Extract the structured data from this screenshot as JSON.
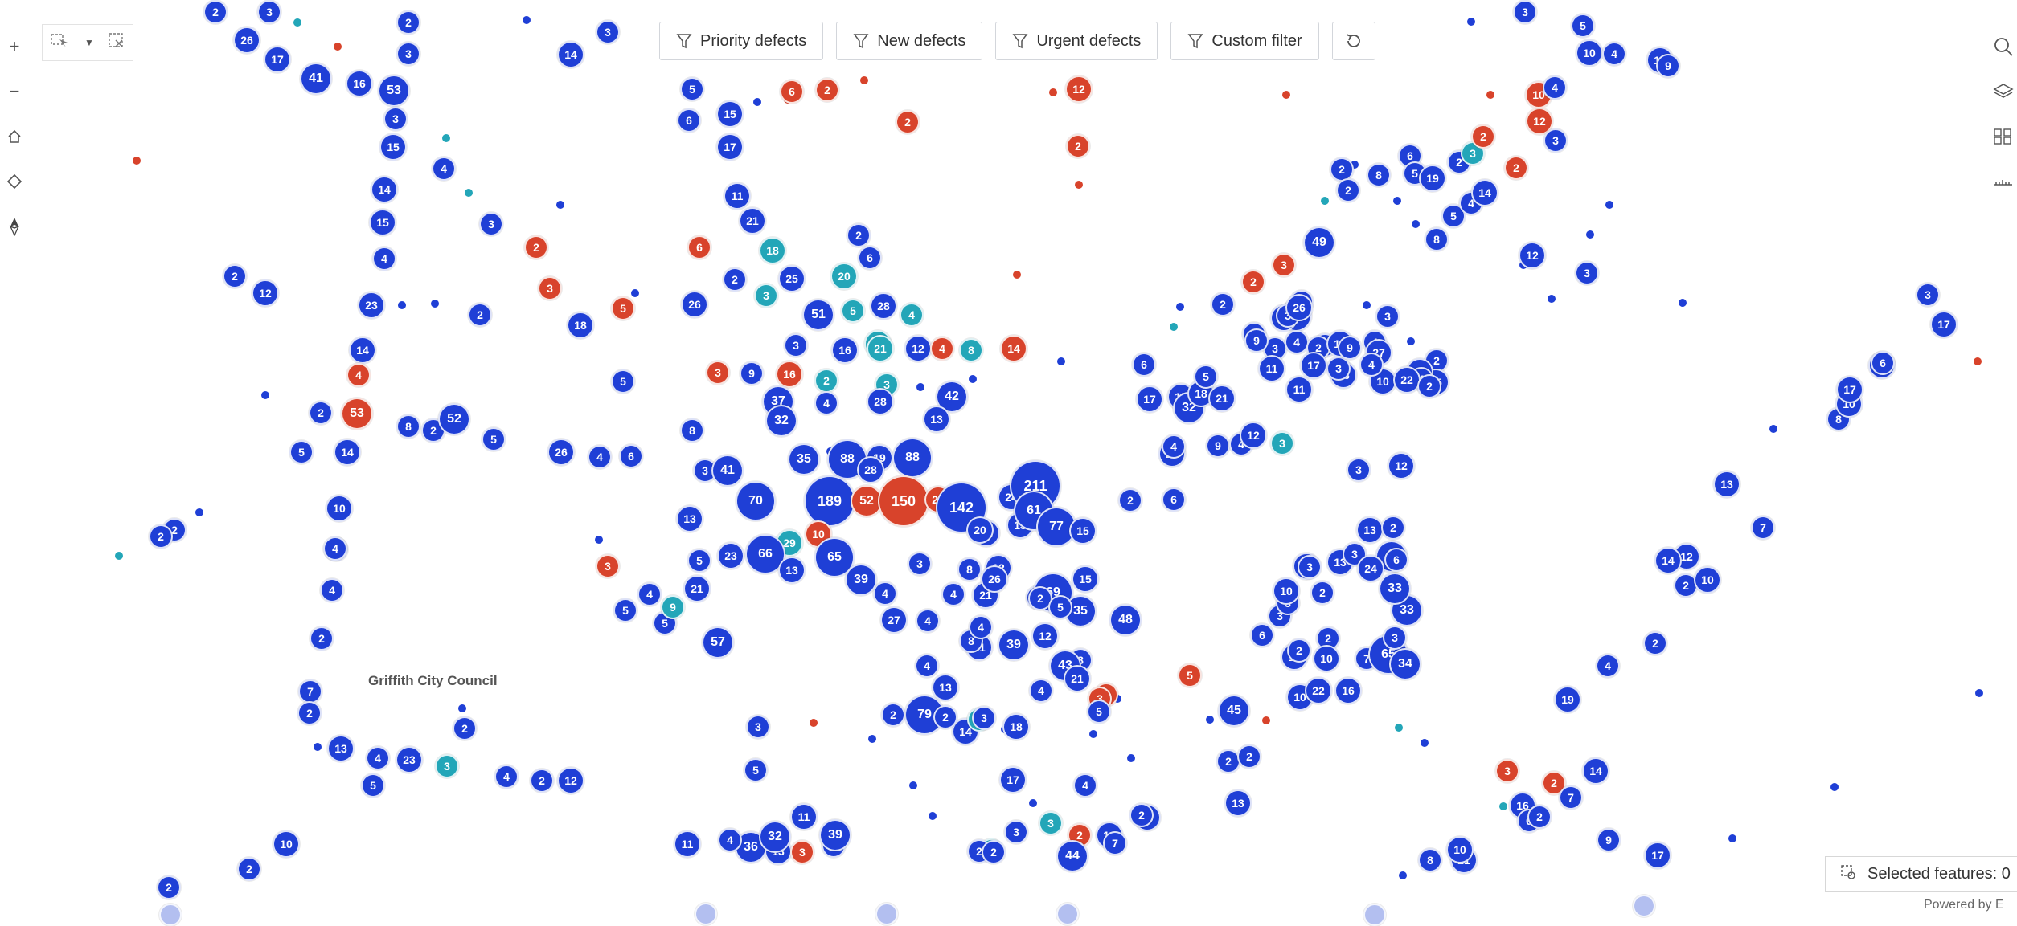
{
  "toolbar": {
    "filters": [
      {
        "label": "Priority defects"
      },
      {
        "label": "New defects"
      },
      {
        "label": "Urgent defects"
      },
      {
        "label": "Custom filter"
      }
    ]
  },
  "map": {
    "place_label": "Griffith City Council",
    "selected_features_text": "Selected features: 0",
    "powered_by_text": "Powered by E"
  },
  "colors": {
    "cluster_blue": "#1f3fd6",
    "cluster_red": "#d8432b",
    "cluster_teal": "#23a6b8",
    "faded_blue": "#b3bff0"
  },
  "icons": {
    "zoom_in": "plus-icon",
    "zoom_out": "minus-icon",
    "home": "home-icon",
    "locate": "locate-icon",
    "compass": "compass-icon",
    "select": "select-rectangle-icon",
    "clear_selection": "clear-selection-icon",
    "search": "search-icon",
    "layers": "layers-icon",
    "basemap": "basemap-gallery-icon",
    "measure": "measure-icon",
    "filter": "filter-icon",
    "refresh": "refresh-icon"
  },
  "clusters": [
    {
      "t": "2",
      "c": "b"
    },
    {
      "t": "3",
      "c": "b"
    },
    {
      "t": "2",
      "c": "b"
    },
    {
      "t": "26",
      "c": "b"
    },
    {
      "t": "17",
      "c": "b"
    },
    {
      "t": "3",
      "c": "b"
    },
    {
      "t": "14",
      "c": "b"
    },
    {
      "t": "3",
      "c": "b"
    },
    {
      "t": "41",
      "c": "b"
    },
    {
      "t": "16",
      "c": "b"
    },
    {
      "t": "53",
      "c": "b"
    },
    {
      "t": "3",
      "c": "b"
    },
    {
      "t": "15",
      "c": "b"
    },
    {
      "t": "4",
      "c": "b"
    },
    {
      "t": "14",
      "c": "b"
    },
    {
      "t": "15",
      "c": "b"
    },
    {
      "t": "3",
      "c": "b"
    },
    {
      "t": "4",
      "c": "b"
    },
    {
      "t": "2",
      "c": "b"
    },
    {
      "t": "12",
      "c": "b"
    },
    {
      "t": "23",
      "c": "b"
    },
    {
      "t": "2",
      "c": "b"
    },
    {
      "t": "18",
      "c": "b"
    },
    {
      "t": "14",
      "c": "b"
    },
    {
      "t": "4",
      "c": "r"
    },
    {
      "t": "53",
      "c": "r"
    },
    {
      "t": "2",
      "c": "b"
    },
    {
      "t": "8",
      "c": "b"
    },
    {
      "t": "2",
      "c": "b"
    },
    {
      "t": "52",
      "c": "b"
    },
    {
      "t": "5",
      "c": "b"
    },
    {
      "t": "14",
      "c": "b"
    },
    {
      "t": "5",
      "c": "b"
    },
    {
      "t": "10",
      "c": "b"
    },
    {
      "t": "2",
      "c": "b"
    },
    {
      "t": "2",
      "c": "b"
    },
    {
      "t": "4",
      "c": "b"
    },
    {
      "t": "4",
      "c": "b"
    },
    {
      "t": "2",
      "c": "b"
    },
    {
      "t": "7",
      "c": "b"
    },
    {
      "t": "2",
      "c": "b"
    },
    {
      "t": "2",
      "c": "b"
    },
    {
      "t": "13",
      "c": "b"
    },
    {
      "t": "4",
      "c": "b"
    },
    {
      "t": "23",
      "c": "b"
    },
    {
      "t": "5",
      "c": "b"
    },
    {
      "t": "3",
      "c": "t"
    },
    {
      "t": "4",
      "c": "b"
    },
    {
      "t": "2",
      "c": "b"
    },
    {
      "t": "12",
      "c": "b"
    },
    {
      "t": "10",
      "c": "b"
    },
    {
      "t": "2",
      "c": "b"
    },
    {
      "t": "4",
      "c": "b"
    },
    {
      "t": "2",
      "c": "b"
    },
    {
      "t": "2",
      "c": "r"
    },
    {
      "t": "3",
      "c": "r"
    },
    {
      "t": "5",
      "c": "r"
    },
    {
      "t": "5",
      "c": "b"
    },
    {
      "t": "26",
      "c": "b"
    },
    {
      "t": "4",
      "c": "b"
    },
    {
      "t": "6",
      "c": "b"
    },
    {
      "t": "3",
      "c": "r"
    },
    {
      "t": "5",
      "c": "b"
    },
    {
      "t": "5",
      "c": "b"
    },
    {
      "t": "4",
      "c": "b"
    },
    {
      "t": "5",
      "c": "b"
    },
    {
      "t": "6",
      "c": "b"
    },
    {
      "t": "15",
      "c": "b"
    },
    {
      "t": "17",
      "c": "b"
    },
    {
      "t": "11",
      "c": "b"
    },
    {
      "t": "6",
      "c": "r"
    },
    {
      "t": "2",
      "c": "r"
    },
    {
      "t": "2",
      "c": "r"
    },
    {
      "t": "12",
      "c": "r"
    },
    {
      "t": "2",
      "c": "r"
    },
    {
      "t": "21",
      "c": "b"
    },
    {
      "t": "6",
      "c": "r"
    },
    {
      "t": "18",
      "c": "t"
    },
    {
      "t": "2",
      "c": "b"
    },
    {
      "t": "6",
      "c": "b"
    },
    {
      "t": "2",
      "c": "b"
    },
    {
      "t": "25",
      "c": "b"
    },
    {
      "t": "20",
      "c": "t"
    },
    {
      "t": "3",
      "c": "t"
    },
    {
      "t": "26",
      "c": "b"
    },
    {
      "t": "51",
      "c": "b"
    },
    {
      "t": "5",
      "c": "t"
    },
    {
      "t": "28",
      "c": "b"
    },
    {
      "t": "4",
      "c": "t"
    },
    {
      "t": "15",
      "c": "t"
    },
    {
      "t": "3",
      "c": "b"
    },
    {
      "t": "16",
      "c": "b"
    },
    {
      "t": "21",
      "c": "t"
    },
    {
      "t": "12",
      "c": "b"
    },
    {
      "t": "4",
      "c": "r"
    },
    {
      "t": "8",
      "c": "t"
    },
    {
      "t": "14",
      "c": "r"
    },
    {
      "t": "3",
      "c": "r"
    },
    {
      "t": "9",
      "c": "b"
    },
    {
      "t": "16",
      "c": "r"
    },
    {
      "t": "2",
      "c": "t"
    },
    {
      "t": "3",
      "c": "t"
    },
    {
      "t": "42",
      "c": "b"
    },
    {
      "t": "37",
      "c": "b"
    },
    {
      "t": "4",
      "c": "b"
    },
    {
      "t": "28",
      "c": "b"
    },
    {
      "t": "32",
      "c": "b"
    },
    {
      "t": "13",
      "c": "b"
    },
    {
      "t": "8",
      "c": "b"
    },
    {
      "t": "35",
      "c": "b"
    },
    {
      "t": "88",
      "c": "b"
    },
    {
      "t": "19",
      "c": "b"
    },
    {
      "t": "88",
      "c": "b"
    },
    {
      "t": "28",
      "c": "b"
    },
    {
      "t": "3",
      "c": "b"
    },
    {
      "t": "41",
      "c": "b"
    },
    {
      "t": "70",
      "c": "b"
    },
    {
      "t": "189",
      "c": "b"
    },
    {
      "t": "52",
      "c": "r"
    },
    {
      "t": "150",
      "c": "r"
    },
    {
      "t": "22",
      "c": "r"
    },
    {
      "t": "8",
      "c": "b"
    },
    {
      "t": "24",
      "c": "b"
    },
    {
      "t": "211",
      "c": "b"
    },
    {
      "t": "142",
      "c": "b"
    },
    {
      "t": "13",
      "c": "b"
    },
    {
      "t": "61",
      "c": "b"
    },
    {
      "t": "12",
      "c": "b"
    },
    {
      "t": "20",
      "c": "b"
    },
    {
      "t": "77",
      "c": "b"
    },
    {
      "t": "15",
      "c": "b"
    },
    {
      "t": "2",
      "c": "b"
    },
    {
      "t": "6",
      "c": "b"
    },
    {
      "t": "29",
      "c": "t"
    },
    {
      "t": "7",
      "c": "b"
    },
    {
      "t": "23",
      "c": "b"
    },
    {
      "t": "13",
      "c": "b"
    },
    {
      "t": "10",
      "c": "r"
    },
    {
      "t": "8",
      "c": "b"
    },
    {
      "t": "12",
      "c": "b"
    },
    {
      "t": "66",
      "c": "b"
    },
    {
      "t": "5",
      "c": "b"
    },
    {
      "t": "21",
      "c": "b"
    },
    {
      "t": "13",
      "c": "b"
    },
    {
      "t": "65",
      "c": "b"
    },
    {
      "t": "3",
      "c": "b"
    },
    {
      "t": "4",
      "c": "b"
    },
    {
      "t": "39",
      "c": "b"
    },
    {
      "t": "4",
      "c": "b"
    },
    {
      "t": "21",
      "c": "b"
    },
    {
      "t": "9",
      "c": "b"
    },
    {
      "t": "69",
      "c": "b"
    },
    {
      "t": "15",
      "c": "b"
    },
    {
      "t": "26",
      "c": "b"
    },
    {
      "t": "2",
      "c": "b"
    },
    {
      "t": "35",
      "c": "b"
    },
    {
      "t": "5",
      "c": "b"
    },
    {
      "t": "57",
      "c": "b"
    },
    {
      "t": "9",
      "c": "t"
    },
    {
      "t": "27",
      "c": "b"
    },
    {
      "t": "4",
      "c": "b"
    },
    {
      "t": "21",
      "c": "b"
    },
    {
      "t": "39",
      "c": "b"
    },
    {
      "t": "8",
      "c": "b"
    },
    {
      "t": "12",
      "c": "b"
    },
    {
      "t": "8",
      "c": "b"
    },
    {
      "t": "48",
      "c": "b"
    },
    {
      "t": "43",
      "c": "b"
    },
    {
      "t": "4",
      "c": "b"
    },
    {
      "t": "21",
      "c": "b"
    },
    {
      "t": "4",
      "c": "b"
    },
    {
      "t": "4",
      "c": "b"
    },
    {
      "t": "79",
      "c": "b"
    },
    {
      "t": "13",
      "c": "b"
    },
    {
      "t": "14",
      "c": "b"
    },
    {
      "t": "2",
      "c": "b"
    },
    {
      "t": "2",
      "c": "t"
    },
    {
      "t": "18",
      "c": "b"
    },
    {
      "t": "3",
      "c": "b"
    },
    {
      "t": "2",
      "c": "b"
    },
    {
      "t": "3",
      "c": "b"
    },
    {
      "t": "2",
      "c": "r"
    },
    {
      "t": "3",
      "c": "r"
    },
    {
      "t": "5",
      "c": "b"
    },
    {
      "t": "5",
      "c": "b"
    },
    {
      "t": "11",
      "c": "b"
    },
    {
      "t": "36",
      "c": "b"
    },
    {
      "t": "13",
      "c": "b"
    },
    {
      "t": "3",
      "c": "r"
    },
    {
      "t": "32",
      "c": "b"
    },
    {
      "t": "3",
      "c": "b"
    },
    {
      "t": "39",
      "c": "b"
    },
    {
      "t": "11",
      "c": "b"
    },
    {
      "t": "4",
      "c": "b"
    },
    {
      "t": "17",
      "c": "b"
    },
    {
      "t": "4",
      "c": "b"
    },
    {
      "t": "2",
      "c": "r"
    },
    {
      "t": "3",
      "c": "b"
    },
    {
      "t": "14",
      "c": "b"
    },
    {
      "t": "7",
      "c": "b"
    },
    {
      "t": "2",
      "c": "t"
    },
    {
      "t": "2",
      "c": "b"
    },
    {
      "t": "2",
      "c": "b"
    },
    {
      "t": "44",
      "c": "b"
    },
    {
      "t": "10",
      "c": "b"
    },
    {
      "t": "3",
      "c": "t"
    },
    {
      "t": "2",
      "c": "b"
    },
    {
      "t": "5",
      "c": "r"
    },
    {
      "t": "2",
      "c": "b"
    },
    {
      "t": "2",
      "c": "b"
    },
    {
      "t": "13",
      "c": "b"
    },
    {
      "t": "45",
      "c": "b"
    },
    {
      "t": "14",
      "c": "b"
    },
    {
      "t": "2",
      "c": "b"
    },
    {
      "t": "2",
      "c": "b"
    },
    {
      "t": "10",
      "c": "b"
    },
    {
      "t": "7",
      "c": "b"
    },
    {
      "t": "10",
      "c": "b"
    },
    {
      "t": "22",
      "c": "b"
    },
    {
      "t": "16",
      "c": "b"
    },
    {
      "t": "65",
      "c": "b"
    },
    {
      "t": "34",
      "c": "b"
    },
    {
      "t": "3",
      "c": "b"
    },
    {
      "t": "33",
      "c": "b"
    },
    {
      "t": "6",
      "c": "b"
    },
    {
      "t": "3",
      "c": "b"
    },
    {
      "t": "3",
      "c": "b"
    },
    {
      "t": "2",
      "c": "b"
    },
    {
      "t": "10",
      "c": "b"
    },
    {
      "t": "20",
      "c": "b"
    },
    {
      "t": "13",
      "c": "b"
    },
    {
      "t": "3",
      "c": "b"
    },
    {
      "t": "48",
      "c": "b"
    },
    {
      "t": "6",
      "c": "b"
    },
    {
      "t": "33",
      "c": "b"
    },
    {
      "t": "24",
      "c": "b"
    },
    {
      "t": "13",
      "c": "b"
    },
    {
      "t": "2",
      "c": "b"
    },
    {
      "t": "3",
      "c": "b"
    },
    {
      "t": "12",
      "c": "b"
    },
    {
      "t": "3",
      "c": "b"
    },
    {
      "t": "23",
      "c": "b"
    },
    {
      "t": "9",
      "c": "b"
    },
    {
      "t": "4",
      "c": "b"
    },
    {
      "t": "12",
      "c": "b"
    },
    {
      "t": "3",
      "c": "t"
    },
    {
      "t": "4",
      "c": "b"
    },
    {
      "t": "17",
      "c": "b"
    },
    {
      "t": "15",
      "c": "b"
    },
    {
      "t": "32",
      "c": "b"
    },
    {
      "t": "18",
      "c": "b"
    },
    {
      "t": "6",
      "c": "b"
    },
    {
      "t": "5",
      "c": "b"
    },
    {
      "t": "21",
      "c": "b"
    },
    {
      "t": "3",
      "c": "b"
    },
    {
      "t": "34",
      "c": "b"
    },
    {
      "t": "2",
      "c": "b"
    },
    {
      "t": "29",
      "c": "b"
    },
    {
      "t": "3",
      "c": "b"
    },
    {
      "t": "5",
      "c": "b"
    },
    {
      "t": "3",
      "c": "b"
    },
    {
      "t": "3",
      "c": "b"
    },
    {
      "t": "4",
      "c": "b"
    },
    {
      "t": "26",
      "c": "b"
    },
    {
      "t": "3",
      "c": "b"
    },
    {
      "t": "27",
      "c": "b"
    },
    {
      "t": "2",
      "c": "b"
    },
    {
      "t": "15",
      "c": "b"
    },
    {
      "t": "4",
      "c": "b"
    },
    {
      "t": "10",
      "c": "b"
    },
    {
      "t": "10",
      "c": "b"
    },
    {
      "t": "4",
      "c": "b"
    },
    {
      "t": "22",
      "c": "b"
    },
    {
      "t": "2",
      "c": "b"
    },
    {
      "t": "2",
      "c": "b"
    },
    {
      "t": "11",
      "c": "b"
    },
    {
      "t": "13",
      "c": "b"
    },
    {
      "t": "4",
      "c": "b"
    },
    {
      "t": "3",
      "c": "b"
    },
    {
      "t": "13",
      "c": "b"
    },
    {
      "t": "9",
      "c": "b"
    },
    {
      "t": "17",
      "c": "b"
    },
    {
      "t": "11",
      "c": "b"
    },
    {
      "t": "9",
      "c": "b"
    },
    {
      "t": "2",
      "c": "r"
    },
    {
      "t": "3",
      "c": "r"
    },
    {
      "t": "49",
      "c": "b"
    },
    {
      "t": "2",
      "c": "b"
    },
    {
      "t": "2",
      "c": "b"
    },
    {
      "t": "8",
      "c": "b"
    },
    {
      "t": "6",
      "c": "b"
    },
    {
      "t": "5",
      "c": "b"
    },
    {
      "t": "19",
      "c": "b"
    },
    {
      "t": "2",
      "c": "b"
    },
    {
      "t": "5",
      "c": "b"
    },
    {
      "t": "8",
      "c": "b"
    },
    {
      "t": "4",
      "c": "b"
    },
    {
      "t": "12",
      "c": "b"
    },
    {
      "t": "3",
      "c": "b"
    },
    {
      "t": "14",
      "c": "b"
    },
    {
      "t": "3",
      "c": "t"
    },
    {
      "t": "2",
      "c": "r"
    },
    {
      "t": "2",
      "c": "r"
    },
    {
      "t": "12",
      "c": "r"
    },
    {
      "t": "3",
      "c": "b"
    },
    {
      "t": "10",
      "c": "r"
    },
    {
      "t": "4",
      "c": "b"
    },
    {
      "t": "10",
      "c": "b"
    },
    {
      "t": "4",
      "c": "b"
    },
    {
      "t": "13",
      "c": "b"
    },
    {
      "t": "9",
      "c": "b"
    },
    {
      "t": "5",
      "c": "b"
    },
    {
      "t": "3",
      "c": "b"
    },
    {
      "t": "17",
      "c": "b"
    },
    {
      "t": "8",
      "c": "b"
    },
    {
      "t": "21",
      "c": "b"
    },
    {
      "t": "10",
      "c": "b"
    },
    {
      "t": "9",
      "c": "b"
    },
    {
      "t": "16",
      "c": "b"
    },
    {
      "t": "6",
      "c": "b"
    },
    {
      "t": "2",
      "c": "r"
    },
    {
      "t": "3",
      "c": "r"
    },
    {
      "t": "2",
      "c": "b"
    },
    {
      "t": "7",
      "c": "b"
    },
    {
      "t": "14",
      "c": "b"
    },
    {
      "t": "19",
      "c": "b"
    },
    {
      "t": "2",
      "c": "b"
    },
    {
      "t": "4",
      "c": "b"
    },
    {
      "t": "2",
      "c": "b"
    },
    {
      "t": "10",
      "c": "b"
    },
    {
      "t": "12",
      "c": "b"
    },
    {
      "t": "7",
      "c": "b"
    },
    {
      "t": "8",
      "c": "b"
    },
    {
      "t": "10",
      "c": "b"
    },
    {
      "t": "17",
      "c": "b"
    },
    {
      "t": "16",
      "c": "b"
    },
    {
      "t": "17",
      "c": "b"
    },
    {
      "t": "3",
      "c": "b"
    },
    {
      "t": "6",
      "c": "b"
    },
    {
      "t": "13",
      "c": "b"
    },
    {
      "t": "14",
      "c": "b"
    }
  ]
}
